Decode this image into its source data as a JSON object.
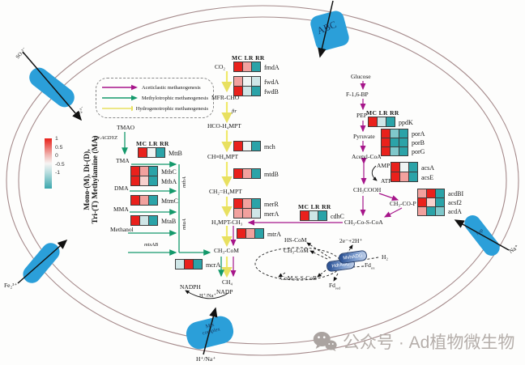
{
  "palette": {
    "r": "#e9211c",
    "p": "#f2a19e",
    "lp": "#f8d0cd",
    "w": "#f0f4f3",
    "lb": "#cfe6e7",
    "t": "#2ba3a8",
    "lt": "#7fc8cb"
  },
  "colors": {
    "membrane": "#a58a8b",
    "transporter": "#2b9fd9",
    "purple": "#a6158a",
    "green": "#14996b",
    "yellow": "#f0e96a",
    "black": "#111111"
  },
  "scalebar": {
    "ticks": [
      "1",
      "0.5",
      "0",
      "-0.5",
      "-1"
    ]
  },
  "axis_label": {
    "line1": "Mono-(M), Di-(D),",
    "line2": "Tri-(T) Methylamine (MA)"
  },
  "legend": {
    "items": [
      {
        "label": "Aceticlastic methanogenesis",
        "color": "#a6158a"
      },
      {
        "label": "Methylotrophic methanogenesis",
        "color": "#14996b"
      },
      {
        "label": "Hydrogenotrophic methanogenesis",
        "color": "#e8e060"
      }
    ]
  },
  "transporters": {
    "abc": "ABC",
    "mtx_line1": "Mtx",
    "mtx_line2": "complex",
    "nap": "nap",
    "so4_out": "SO₄²⁻",
    "so4_in": "SO₄²⁻",
    "fe": "Fe₂³⁺",
    "na": "Na⁺",
    "h_na_bottom": "H⁺/Na⁺"
  },
  "heatmap_header": "MC LR RR",
  "heatmaps": [
    {
      "id": "hm_fmd",
      "header": true,
      "rows": [
        {
          "gene": "fmdA",
          "cells": [
            "r",
            "p",
            "t"
          ]
        }
      ]
    },
    {
      "id": "hm_fwd",
      "rows": [
        {
          "gene": "fwdA",
          "cells": [
            "p",
            "w",
            "lb"
          ]
        },
        {
          "gene": "fwdB",
          "cells": [
            "r",
            "lb",
            "t"
          ]
        }
      ]
    },
    {
      "id": "hm_mch",
      "rows": [
        {
          "gene": "mch",
          "cells": [
            "r",
            "w",
            "t"
          ]
        }
      ]
    },
    {
      "id": "hm_mtd",
      "rows": [
        {
          "gene": "mtdB",
          "cells": [
            "r",
            "p",
            "t"
          ]
        }
      ]
    },
    {
      "id": "hm_mer",
      "rows": [
        {
          "gene": "merR",
          "cells": [
            "r",
            "p",
            "t"
          ]
        },
        {
          "gene": "merA",
          "cells": [
            "p",
            "p",
            "lb"
          ]
        }
      ]
    },
    {
      "id": "hm_mtr",
      "rows": [
        {
          "gene": "mtrA",
          "cells": [
            "r",
            "p",
            "t"
          ]
        }
      ]
    },
    {
      "id": "hm_mcr",
      "rows": [
        {
          "gene": "mcrA",
          "cells": [
            "lb",
            "r",
            "t"
          ]
        }
      ]
    },
    {
      "id": "hm_mtt",
      "header": true,
      "rows": [
        {
          "gene": "MttB",
          "cells": [
            "r",
            "w",
            "t"
          ]
        }
      ]
    },
    {
      "id": "hm_mtb",
      "rows": [
        {
          "gene": "MtbC",
          "cells": [
            "r",
            "p",
            "t"
          ]
        },
        {
          "gene": "MtbA",
          "cells": [
            "r",
            "lp",
            "t"
          ]
        }
      ]
    },
    {
      "id": "hm_mtm",
      "rows": [
        {
          "gene": "MtmC",
          "cells": [
            "r",
            "p",
            "t"
          ]
        }
      ]
    },
    {
      "id": "hm_mta",
      "rows": [
        {
          "gene": "MtaB",
          "cells": [
            "r",
            "lb",
            "t"
          ]
        }
      ]
    },
    {
      "id": "hm_cdh",
      "header": true,
      "rows": [
        {
          "gene": "cdhC",
          "cells": [
            "r",
            "lb",
            "t"
          ]
        }
      ]
    },
    {
      "id": "hm_ppd",
      "header": true,
      "rows": [
        {
          "gene": "ppdK",
          "cells": [
            "r",
            "lb",
            "t"
          ]
        }
      ]
    },
    {
      "id": "hm_por",
      "rows": [
        {
          "gene": "porA",
          "cells": [
            "r",
            "lt",
            "t"
          ]
        },
        {
          "gene": "porB",
          "cells": [
            "r",
            "t",
            "t"
          ]
        },
        {
          "gene": "porG",
          "cells": [
            "r",
            "lt",
            "t"
          ]
        }
      ]
    },
    {
      "id": "hm_acs",
      "rows": [
        {
          "gene": "acsA",
          "cells": [
            "r",
            "w",
            "t"
          ]
        },
        {
          "gene": "acsE",
          "cells": [
            "r",
            "p",
            "t"
          ]
        }
      ]
    },
    {
      "id": "hm_acd",
      "rows": [
        {
          "gene": "acdBI",
          "cells": [
            "p",
            "r",
            "t"
          ]
        },
        {
          "gene": "acsf2",
          "cells": [
            "r",
            "lp",
            "t"
          ]
        },
        {
          "gene": "acdA",
          "cells": [
            "p",
            "t",
            "lt"
          ]
        }
      ]
    }
  ],
  "nodes": {
    "co2": "CO₂",
    "mfr_cho": "MFR-CHO",
    "hco_h4mpt": "HCO-H₄MPT",
    "ch_h4mpt": "CH≡H₄MPT",
    "ch2_h4mpt": "CH₂=H₄MPT",
    "h4mpt_ch3": "H₄MPT-CH₃",
    "ch3_com": "CH₃-CoM",
    "ch4": "CH₄",
    "nadph": "NADPH",
    "h_na": "H⁺/Na⁺",
    "nadp": "NADP",
    "tmao": "TMAO",
    "tma": "TMA",
    "dma": "DMA",
    "mma": "MMA",
    "methanol": "Methanol",
    "glucose": "Glucose",
    "f16bp": "F-1,6-BP",
    "pep": "PEP",
    "pyruvate": "Pyruvate",
    "acetyl_coa": "Acetyl-CoA",
    "amp": "AMP",
    "atp": "ATP",
    "ch3cooh": "CH₃COOH",
    "ch3cop": "CH₃-CO-P",
    "ch3coscoa": "CH₃-Co-S-CoA",
    "hs_com": "HS-CoM",
    "ch3_com_cycle": "CH₃-CoM",
    "two_e": "2e⁻+2H⁺",
    "h2": "H₂",
    "fd": "Fd",
    "fd_ox_sub": "ox",
    "fd_red_sub": "red",
    "com_s_s_cob": "CoM-S-S-CoB",
    "hdr": "HdrABC",
    "mvh": "MvhADG"
  },
  "arrow_labels": {
    "ftr": "ftr",
    "tor": "tor.ACDYZ",
    "mtba": "mtbA",
    "mtaa": "mtaA",
    "mtsab": "mtsAB"
  },
  "watermark": {
    "text": "公众号 · Ad植物微生物"
  }
}
